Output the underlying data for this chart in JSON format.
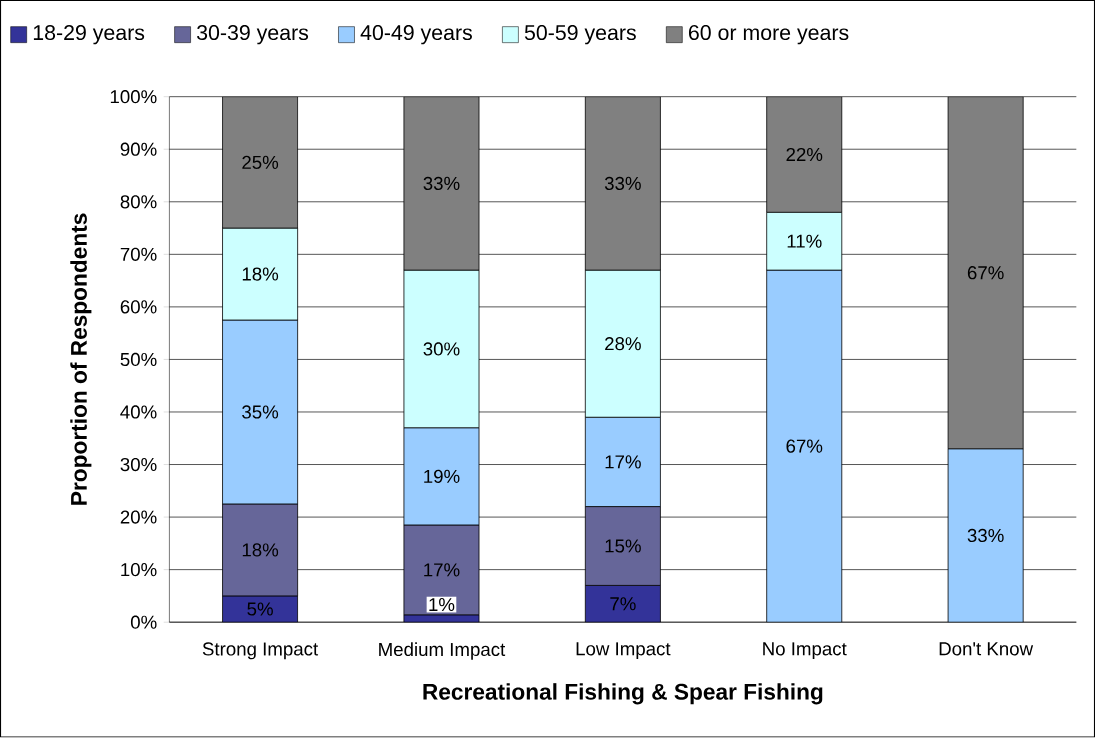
{
  "chart_data": {
    "type": "bar",
    "stacked": true,
    "xlabel": "Recreational Fishing & Spear Fishing",
    "ylabel": "Proportion of Respondents",
    "categories": [
      "Strong Impact",
      "Medium Impact",
      "Low Impact",
      "No Impact",
      "Don't Know"
    ],
    "ylim": [
      0,
      100
    ],
    "yticks": [
      {
        "value": 0,
        "label": "0%"
      },
      {
        "value": 10,
        "label": "10%"
      },
      {
        "value": 20,
        "label": "20%"
      },
      {
        "value": 30,
        "label": "30%"
      },
      {
        "value": 40,
        "label": "40%"
      },
      {
        "value": 50,
        "label": "50%"
      },
      {
        "value": 60,
        "label": "60%"
      },
      {
        "value": 70,
        "label": "70%"
      },
      {
        "value": 80,
        "label": "80%"
      },
      {
        "value": 90,
        "label": "90%"
      },
      {
        "value": 100,
        "label": "100%"
      }
    ],
    "grid": "y",
    "legend": "top",
    "series": [
      {
        "name": "18-29 years",
        "color": "#333399",
        "values": [
          5,
          1.4,
          7,
          null,
          null
        ],
        "value_labels": [
          "5%",
          "1%",
          "7%",
          null,
          null
        ]
      },
      {
        "name": "30-39 years",
        "color": "#666699",
        "values": [
          17.5,
          17.1,
          15,
          null,
          null
        ],
        "value_labels": [
          "18%",
          "17%",
          "15%",
          null,
          null
        ]
      },
      {
        "name": "40-49 years",
        "color": "#99ccff",
        "values": [
          35,
          18.5,
          17,
          67,
          33
        ],
        "value_labels": [
          "35%",
          "19%",
          "17%",
          "67%",
          "33%"
        ]
      },
      {
        "name": "50-59 years",
        "color": "#ccffff",
        "values": [
          17.5,
          30,
          28,
          11,
          null
        ],
        "value_labels": [
          "18%",
          "30%",
          "28%",
          "11%",
          null
        ]
      },
      {
        "name": "60 or more years",
        "color": "#808080",
        "values": [
          25,
          33,
          33,
          22,
          67
        ],
        "value_labels": [
          "25%",
          "33%",
          "33%",
          "22%",
          "67%"
        ]
      }
    ]
  }
}
